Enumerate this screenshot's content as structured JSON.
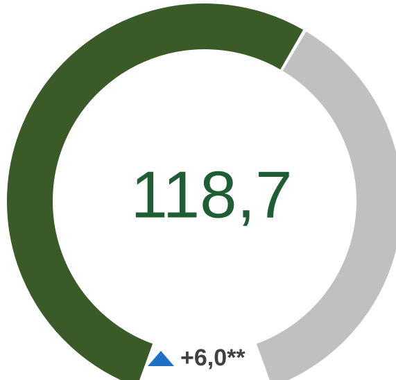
{
  "chart_data": {
    "type": "gauge",
    "values": [
      118.7
    ],
    "value_labels": [
      "118,7"
    ],
    "ylim": [
      0,
      200
    ],
    "color": "#3a5a27",
    "track_color": "#c0c0c0",
    "value_text_color": "#1f5e34",
    "delta": {
      "values": [
        6.0
      ],
      "value_labels": [
        "+6,0**"
      ],
      "color": "#404040",
      "arrow_color": "#1f6fc5"
    }
  }
}
